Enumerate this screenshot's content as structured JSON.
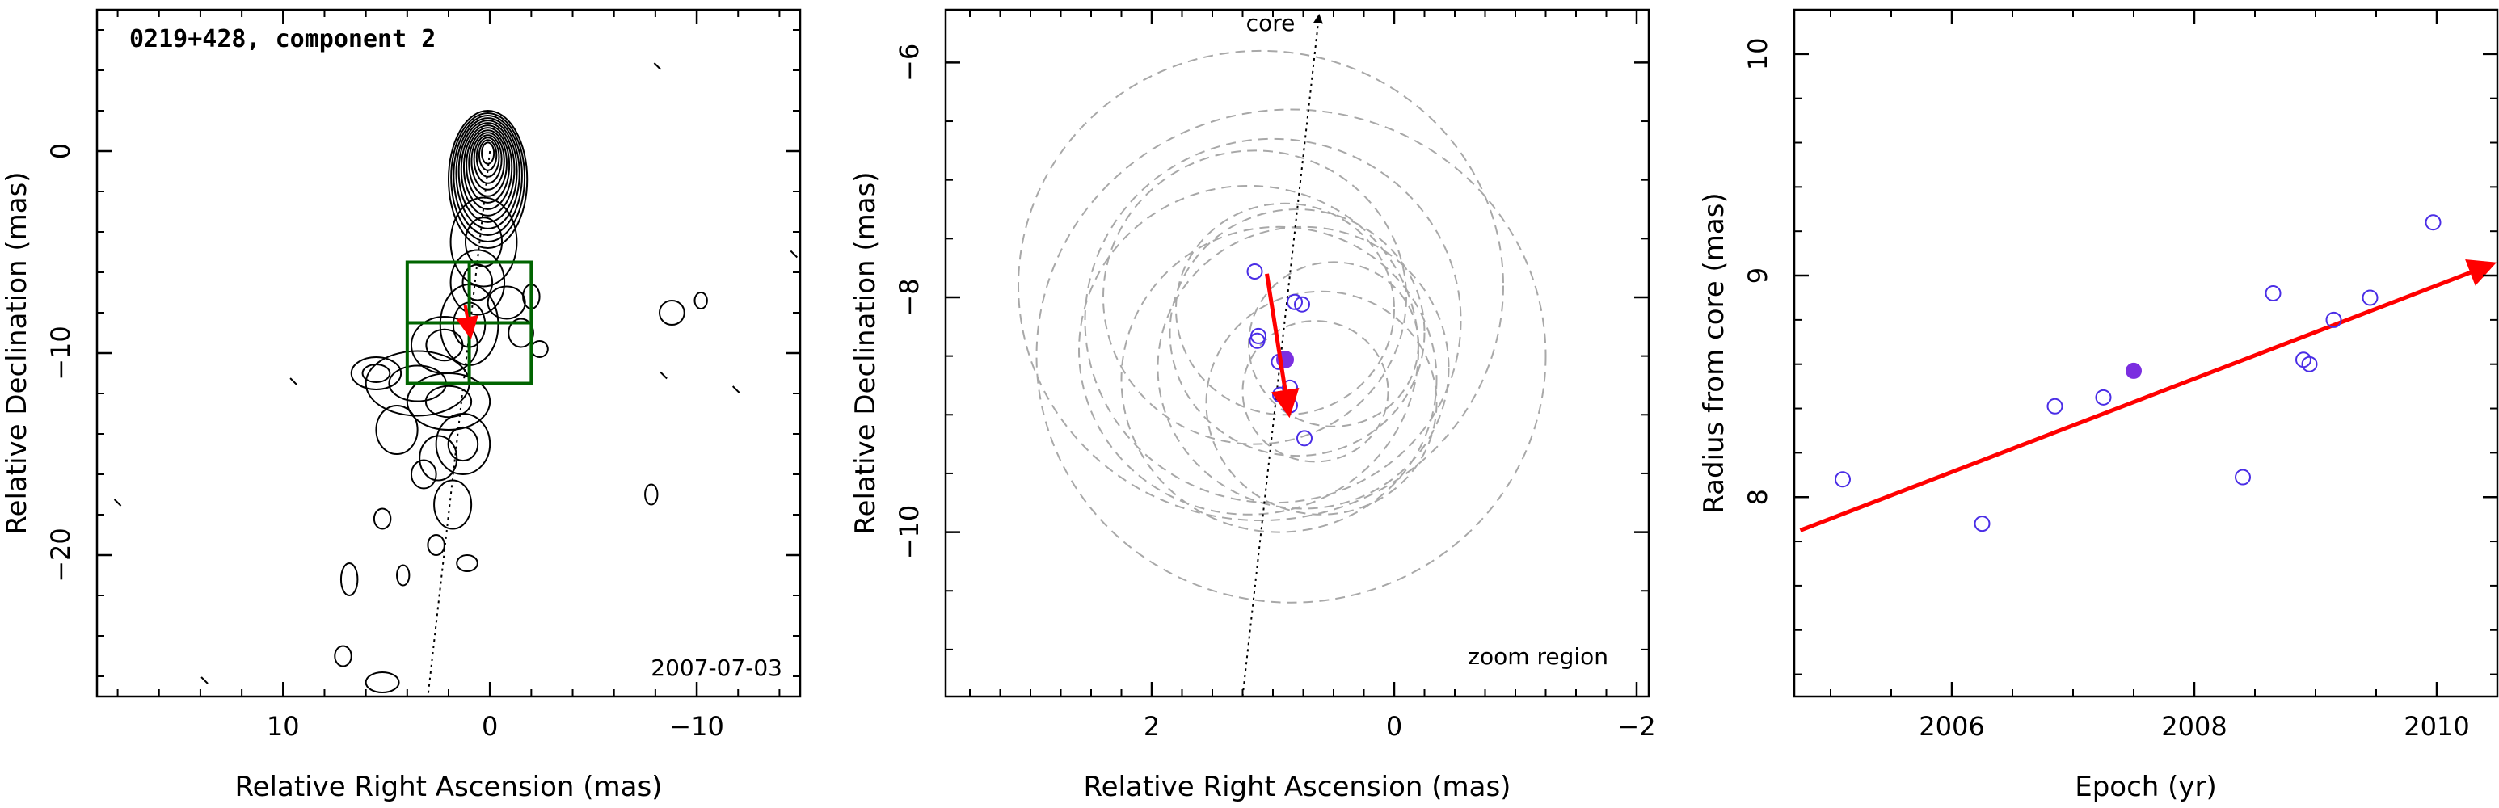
{
  "colors": {
    "contour": "#000000",
    "box": "#006400",
    "arrow": "#ff0000",
    "point": "#4a2de6",
    "point_filled": "#7b2ee0",
    "circle": "#a8a8a8",
    "axis": "#000000"
  },
  "chart_data": [
    {
      "type": "scatter",
      "panel": "contour-map",
      "title": "0219+428, component 2",
      "date_label": "2007-07-03",
      "xlabel": "Relative Right Ascension (mas)",
      "ylabel": "Relative Declination (mas)",
      "xlim": [
        19,
        -15
      ],
      "ylim": [
        -27,
        7
      ],
      "x_reversed": true,
      "xticks": [
        10,
        0,
        -10
      ],
      "xtick_labels": [
        "10",
        "0",
        "−10"
      ],
      "yticks": [
        0,
        -10,
        -20
      ],
      "ytick_labels": [
        "0",
        "−10",
        "−20"
      ],
      "zoom_region": {
        "x_range": [
          4,
          -2
        ],
        "y_range": [
          -11.5,
          -5.5
        ],
        "split_at_x": 1,
        "split_at_y": -8.5
      },
      "component_position": {
        "x": 1.0,
        "y": -8.5
      },
      "core_line": {
        "from": [
          0,
          0
        ],
        "to": [
          3,
          -27
        ],
        "style": "dotted"
      }
    },
    {
      "type": "scatter",
      "panel": "zoom",
      "xlabel": "Relative Right Ascension (mas)",
      "ylabel": "Relative Declination (mas)",
      "xlim": [
        3.7,
        -2.1
      ],
      "ylim": [
        -11.4,
        -5.55
      ],
      "x_reversed": true,
      "xticks": [
        2,
        0,
        -2
      ],
      "xtick_labels": [
        "2",
        "0",
        "−2"
      ],
      "yticks": [
        -6,
        -8,
        -10
      ],
      "ytick_labels": [
        "−6",
        "−8",
        "−10"
      ],
      "annotation_core": "core",
      "annotation_zoom": "zoom region",
      "core_arrow": {
        "from": [
          1.25,
          -11.4
        ],
        "to": [
          0.62,
          -5.6
        ]
      },
      "points": [
        {
          "x": 1.15,
          "y": -7.78
        },
        {
          "x": 1.12,
          "y": -8.33
        },
        {
          "x": 1.13,
          "y": -8.37
        },
        {
          "x": 0.82,
          "y": -8.04
        },
        {
          "x": 0.76,
          "y": -8.06
        },
        {
          "x": 0.95,
          "y": -8.55
        },
        {
          "x": 0.94,
          "y": -8.83
        },
        {
          "x": 0.86,
          "y": -8.77
        },
        {
          "x": 0.86,
          "y": -8.92
        },
        {
          "x": 0.74,
          "y": -9.2
        }
      ],
      "filled_point": {
        "x": 0.9,
        "y": -8.53
      },
      "motion_arrow": {
        "from": [
          1.05,
          -7.8
        ],
        "to": [
          0.87,
          -8.98
        ]
      },
      "circles": [
        {
          "x": 1.1,
          "y": -7.9,
          "r": 2.0
        },
        {
          "x": 0.85,
          "y": -8.5,
          "r": 2.1
        },
        {
          "x": 1.0,
          "y": -8.2,
          "r": 1.55
        },
        {
          "x": 1.15,
          "y": -8.0,
          "r": 1.25
        },
        {
          "x": 0.8,
          "y": -8.3,
          "r": 1.05
        },
        {
          "x": 0.75,
          "y": -8.6,
          "r": 1.2
        },
        {
          "x": 0.9,
          "y": -8.1,
          "r": 0.9
        },
        {
          "x": 0.6,
          "y": -8.9,
          "r": 0.95
        },
        {
          "x": 0.95,
          "y": -8.7,
          "r": 1.3
        },
        {
          "x": 0.5,
          "y": -8.4,
          "r": 0.7
        },
        {
          "x": 0.65,
          "y": -8.8,
          "r": 0.6
        },
        {
          "x": 1.2,
          "y": -8.45,
          "r": 1.4
        }
      ]
    },
    {
      "type": "scatter",
      "panel": "radius-vs-epoch",
      "xlabel": "Epoch (yr)",
      "ylabel": "Radius from core (mas)",
      "xlim": [
        2004.7,
        2010.5
      ],
      "ylim": [
        7.1,
        10.2
      ],
      "xticks": [
        2006,
        2008,
        2010
      ],
      "xtick_labels": [
        "2006",
        "2008",
        "2010"
      ],
      "yticks": [
        8,
        9,
        10
      ],
      "ytick_labels": [
        "8",
        "9",
        "10"
      ],
      "points": [
        {
          "x": 2005.1,
          "y": 8.08
        },
        {
          "x": 2006.25,
          "y": 7.88
        },
        {
          "x": 2006.85,
          "y": 8.41
        },
        {
          "x": 2007.25,
          "y": 8.45
        },
        {
          "x": 2008.4,
          "y": 8.09
        },
        {
          "x": 2008.65,
          "y": 8.92
        },
        {
          "x": 2008.9,
          "y": 8.62
        },
        {
          "x": 2008.95,
          "y": 8.6
        },
        {
          "x": 2009.15,
          "y": 8.8
        },
        {
          "x": 2009.45,
          "y": 8.9
        },
        {
          "x": 2009.97,
          "y": 9.24
        }
      ],
      "filled_point": {
        "x": 2007.5,
        "y": 8.57
      },
      "fit_arrow": {
        "from": [
          2004.75,
          7.85
        ],
        "to": [
          2010.45,
          9.05
        ]
      }
    }
  ]
}
